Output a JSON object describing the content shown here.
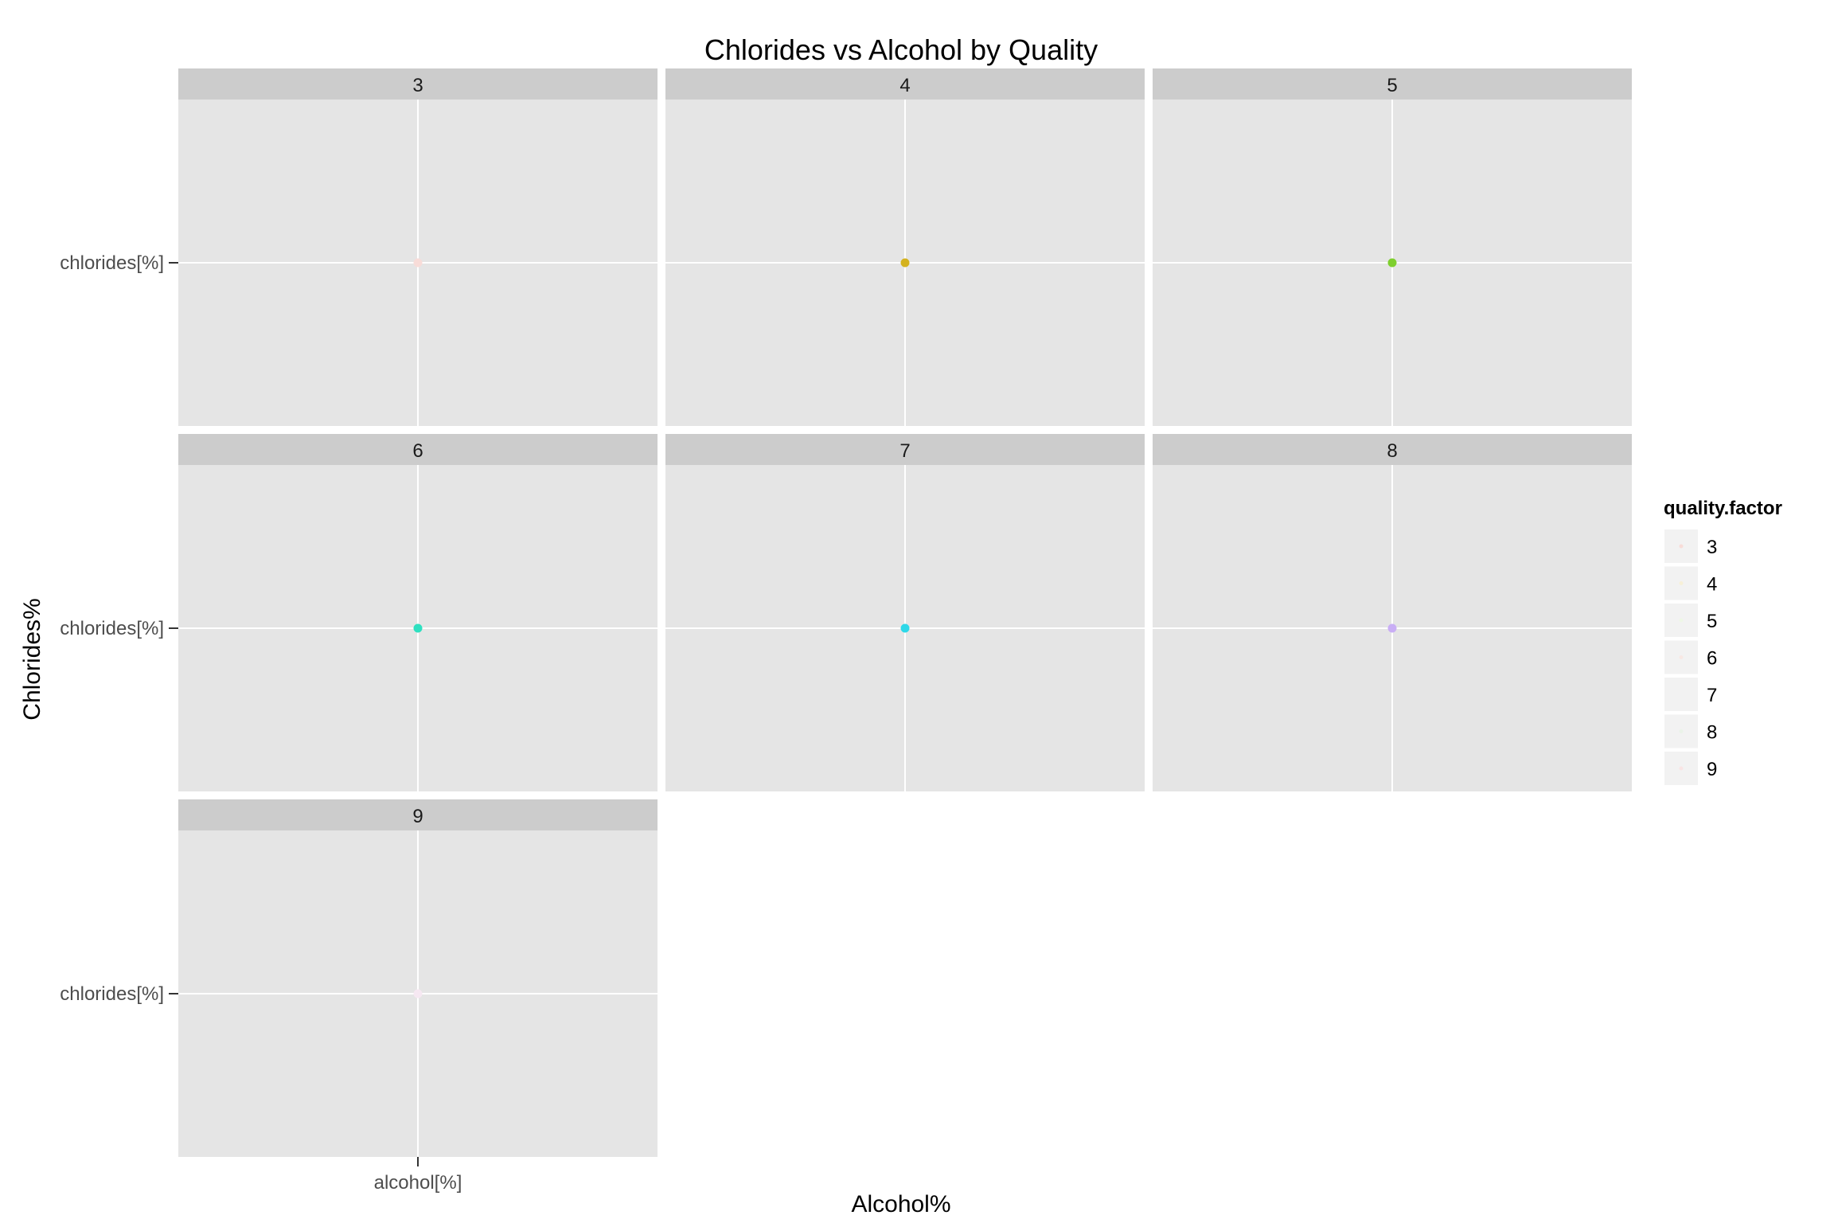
{
  "chart_data": {
    "type": "scatter",
    "title": "Chlorides vs Alcohol by Quality",
    "xlabel": "Alcohol%",
    "ylabel": "Chlorides%",
    "x_tick_labels": [
      "alcohol[%]"
    ],
    "y_tick_labels": [
      "chlorides[%]"
    ],
    "facet_layout": "3 columns x 3 rows",
    "facets": [
      {
        "label": "3",
        "points": [
          {
            "x": "alcohol[%]",
            "y": "chlorides[%]",
            "color": "#F8DCD8"
          }
        ]
      },
      {
        "label": "4",
        "points": [
          {
            "x": "alcohol[%]",
            "y": "chlorides[%]",
            "color": "#D4B21E"
          }
        ]
      },
      {
        "label": "5",
        "points": [
          {
            "x": "alcohol[%]",
            "y": "chlorides[%]",
            "color": "#7ECF2E"
          }
        ]
      },
      {
        "label": "6",
        "points": [
          {
            "x": "alcohol[%]",
            "y": "chlorides[%]",
            "color": "#2EE0C0"
          }
        ]
      },
      {
        "label": "7",
        "points": [
          {
            "x": "alcohol[%]",
            "y": "chlorides[%]",
            "color": "#2ED8E8"
          }
        ]
      },
      {
        "label": "8",
        "points": [
          {
            "x": "alcohol[%]",
            "y": "chlorides[%]",
            "color": "#C9AEF5"
          }
        ]
      },
      {
        "label": "9",
        "points": [
          {
            "x": "alcohol[%]",
            "y": "chlorides[%]",
            "color": "#F6E8F2"
          }
        ]
      }
    ],
    "legend": {
      "title": "quality.factor",
      "position": "right",
      "entries": [
        "3",
        "4",
        "5",
        "6",
        "7",
        "8",
        "9"
      ],
      "key_colors": [
        "#F8DCD8",
        "#F7F0D8",
        "#EEF7E6",
        "#F8E8E4",
        "#F2F2F2",
        "#EAF3E8",
        "#F9E4E4"
      ]
    },
    "grid": true,
    "panel_background": "#E5E5E5",
    "strip_background": "#CCCCCC",
    "gridline_color": "#FFFFFF"
  }
}
